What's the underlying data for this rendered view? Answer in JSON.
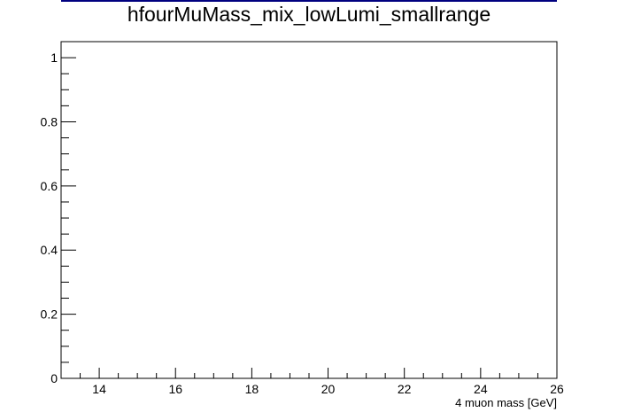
{
  "chart_data": {
    "type": "bar",
    "title": "hfourMuMass_mix_lowLumi_smallrange",
    "xlabel": "4 muon mass [GeV]",
    "ylabel": "",
    "xlim": [
      13,
      26
    ],
    "ylim": [
      0,
      1.05
    ],
    "x_ticks": [
      14,
      16,
      18,
      20,
      22,
      24,
      26
    ],
    "x_tick_labels": [
      "14",
      "16",
      "18",
      "20",
      "22",
      "24",
      "26"
    ],
    "y_ticks": [
      0,
      0.2,
      0.4,
      0.6,
      0.8,
      1
    ],
    "y_tick_labels": [
      "0",
      "0.2",
      "0.4",
      "0.6",
      "0.8",
      "1"
    ],
    "x_minor_step": 0.5,
    "y_minor_step": 0.05,
    "series": [
      {
        "values": []
      }
    ],
    "grid": false,
    "colors": {
      "frame": "#000000",
      "title_line": "#00007f"
    }
  }
}
